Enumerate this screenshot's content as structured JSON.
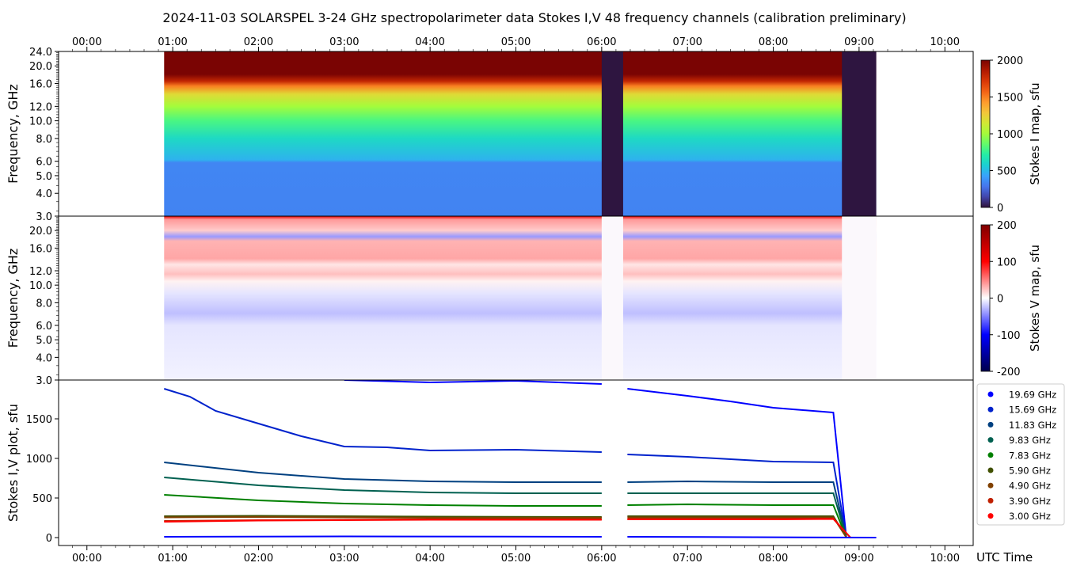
{
  "chart_data": {
    "type": "heatmap",
    "title": "2024-11-03  SOLARSPEL  3-24 GHz spectropolarimeter data   Stokes I,V   48 frequency channels   (calibration preliminary)",
    "time_ticks": [
      "00:00",
      "01:00",
      "02:00",
      "03:00",
      "04:00",
      "05:00",
      "06:00",
      "07:00",
      "08:00",
      "09:00",
      "10:00"
    ],
    "time_range_hours": [
      -0.33,
      10.33
    ],
    "xlabel": "UTC Time",
    "data_coverage_hours": [
      0.9,
      9.2
    ],
    "gaps_hours": [
      [
        6.0,
        6.25
      ],
      [
        8.8,
        9.2
      ]
    ],
    "panels": [
      {
        "name": "stokes-i-map",
        "ylabel": "Frequency, GHz",
        "yscale": "log",
        "ylim": [
          3.0,
          24.0
        ],
        "yticks": [
          "3.0",
          "4.0",
          "5.0",
          "6.0",
          "8.0",
          "10.0",
          "12.0",
          "16.0",
          "20.0",
          "24.0"
        ],
        "colorbar_label": "Stokes I map, sfu",
        "colorbar_ticks": [
          "0",
          "500",
          "1000",
          "1500",
          "2000"
        ],
        "clim": [
          0,
          2000
        ],
        "spectrum_profile": [
          {
            "f": 3.0,
            "v": 330
          },
          {
            "f": 5.9,
            "v": 340
          },
          {
            "f": 6.1,
            "v": 480
          },
          {
            "f": 8.0,
            "v": 620
          },
          {
            "f": 10.0,
            "v": 800
          },
          {
            "f": 12.0,
            "v": 1000
          },
          {
            "f": 14.0,
            "v": 1200
          },
          {
            "f": 15.5,
            "v": 1500
          },
          {
            "f": 16.5,
            "v": 1800
          },
          {
            "f": 18.0,
            "v": 2000
          },
          {
            "f": 24.0,
            "v": 2000
          }
        ]
      },
      {
        "name": "stokes-v-map",
        "ylabel": "Frequency, GHz",
        "yscale": "log",
        "ylim": [
          3.0,
          24.0
        ],
        "yticks": [
          "3.0",
          "4.0",
          "5.0",
          "6.0",
          "8.0",
          "10.0",
          "12.0",
          "16.0",
          "20.0"
        ],
        "colorbar_label": "Stokes V map, sfu",
        "colorbar_ticks": [
          "-200",
          "-100",
          "0",
          "100",
          "200"
        ],
        "clim": [
          -200,
          200
        ],
        "spectrum_profile": [
          {
            "f": 3.0,
            "v": -5
          },
          {
            "f": 6.0,
            "v": -10
          },
          {
            "f": 7.0,
            "v": -25
          },
          {
            "f": 9.0,
            "v": -10
          },
          {
            "f": 10.5,
            "v": 5
          },
          {
            "f": 11.5,
            "v": 25
          },
          {
            "f": 13.0,
            "v": 10
          },
          {
            "f": 14.0,
            "v": 35
          },
          {
            "f": 17.5,
            "v": 30
          },
          {
            "f": 18.5,
            "v": -40
          },
          {
            "f": 20.0,
            "v": 20
          },
          {
            "f": 23.0,
            "v": 40
          },
          {
            "f": 24.0,
            "v": 120
          }
        ]
      },
      {
        "name": "stokes-iv-plot",
        "type": "scatter",
        "ylabel": "Stokes I,V plot, sfu",
        "ylim": [
          -100,
          1990
        ],
        "yticks": [
          "0",
          "500",
          "1000",
          "1500"
        ],
        "legend_position": "right",
        "series": [
          {
            "name": "19.69 GHz",
            "color": "#0000ff",
            "t": [
              3.0,
              4.0,
              5.0,
              6.0,
              6.3,
              7.0,
              7.5,
              8.0,
              8.7,
              8.85
            ],
            "v": [
              1990,
              1960,
              1980,
              1940,
              1880,
              1790,
              1720,
              1640,
              1580,
              10
            ]
          },
          {
            "name": "15.69 GHz",
            "color": "#0022cc",
            "t": [
              0.9,
              1.2,
              1.5,
              2.0,
              2.5,
              3.0,
              3.5,
              4.0,
              5.0,
              6.0,
              6.3,
              7.0,
              8.0,
              8.7,
              8.85
            ],
            "v": [
              1880,
              1780,
              1600,
              1440,
              1280,
              1150,
              1140,
              1100,
              1110,
              1080,
              1050,
              1020,
              960,
              950,
              10
            ]
          },
          {
            "name": "11.83 GHz",
            "color": "#004080",
            "t": [
              0.9,
              2.0,
              3.0,
              4.0,
              5.0,
              6.0,
              6.3,
              7.0,
              8.0,
              8.7,
              8.85
            ],
            "v": [
              950,
              820,
              740,
              710,
              700,
              700,
              700,
              710,
              700,
              700,
              5
            ]
          },
          {
            "name": "9.83 GHz",
            "color": "#006050",
            "t": [
              0.9,
              2.0,
              3.0,
              4.0,
              5.0,
              6.0,
              6.3,
              7.0,
              8.0,
              8.7,
              8.85
            ],
            "v": [
              760,
              660,
              600,
              570,
              560,
              560,
              560,
              560,
              560,
              560,
              5
            ]
          },
          {
            "name": "7.83 GHz",
            "color": "#008000",
            "t": [
              0.9,
              2.0,
              3.0,
              4.0,
              5.0,
              6.0,
              6.3,
              7.0,
              8.0,
              8.7,
              8.85
            ],
            "v": [
              540,
              470,
              430,
              410,
              400,
              400,
              410,
              420,
              410,
              410,
              5
            ]
          },
          {
            "name": "5.90 GHz",
            "color": "#405000",
            "t": [
              0.9,
              2.0,
              4.0,
              6.0,
              6.3,
              8.0,
              8.7,
              8.85
            ],
            "v": [
              270,
              275,
              265,
              260,
              270,
              270,
              270,
              5
            ]
          },
          {
            "name": "4.90 GHz",
            "color": "#804000",
            "t": [
              0.9,
              2.0,
              4.0,
              6.0,
              6.3,
              8.0,
              8.7,
              8.85
            ],
            "v": [
              255,
              260,
              250,
              250,
              255,
              255,
              255,
              5
            ]
          },
          {
            "name": "3.90 GHz",
            "color": "#c02000",
            "t": [
              0.9,
              2.0,
              4.0,
              6.0,
              6.3,
              8.0,
              8.7,
              8.9
            ],
            "v": [
              210,
              220,
              230,
              230,
              235,
              235,
              240,
              0
            ]
          },
          {
            "name": "3.00 GHz",
            "color": "#ff0000",
            "t": [
              0.9,
              2.0,
              4.0,
              6.0,
              6.3,
              8.0,
              8.7,
              8.9
            ],
            "v": [
              200,
              215,
              225,
              225,
              230,
              230,
              235,
              0
            ]
          },
          {
            "color": "#0000ff",
            "t": [
              0.9,
              3.0,
              6.0,
              6.3,
              9.2
            ],
            "v": [
              10,
              15,
              10,
              10,
              0
            ]
          }
        ]
      }
    ]
  }
}
